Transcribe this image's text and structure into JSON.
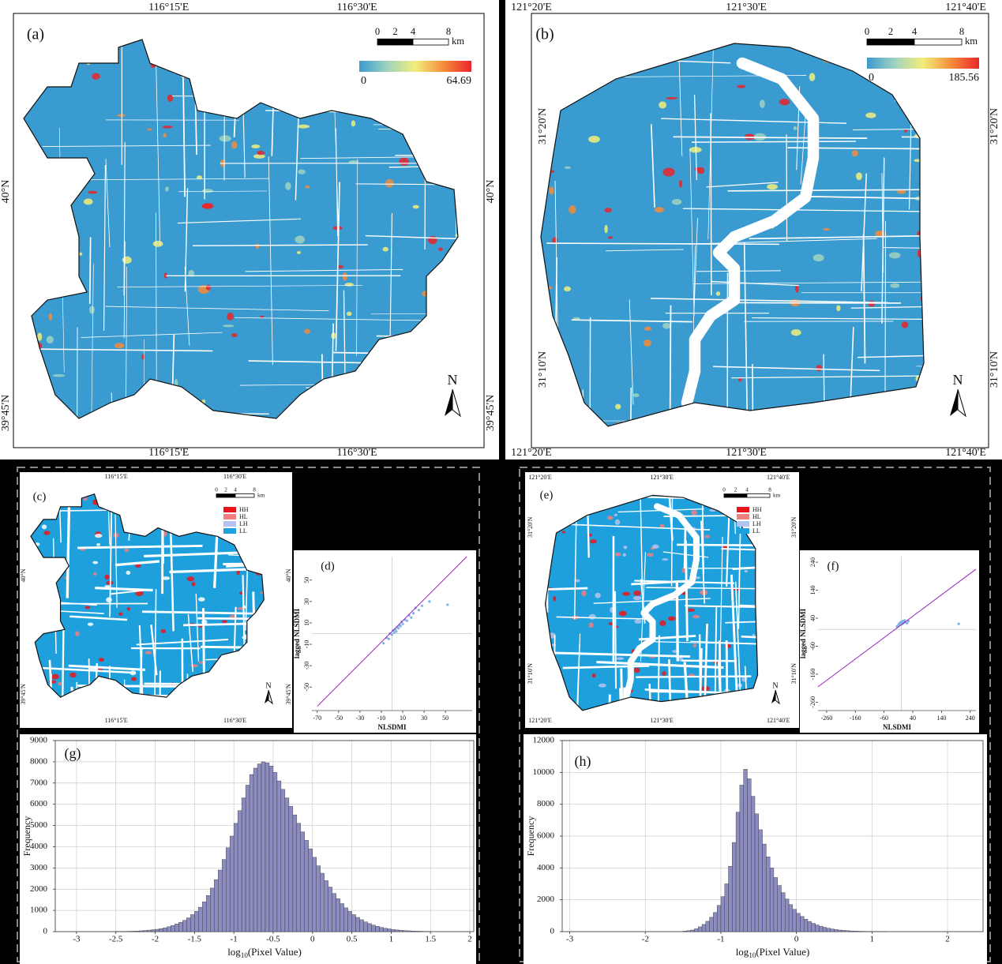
{
  "maps": [
    {
      "label": "(a)",
      "x_ticks": [
        "116°15'E",
        "116°30'E"
      ],
      "y_ticks": [
        "40°N",
        "39°45'N"
      ],
      "north": "N",
      "scale_bar": {
        "ticks": [
          0,
          2,
          4,
          8
        ],
        "unit": "km"
      },
      "colorbar": {
        "min": 0,
        "max": 64.69,
        "colormap": [
          "#3a9bd0",
          "#9fd3c0",
          "#f2ee7a",
          "#f58c3a",
          "#e8262a"
        ]
      }
    },
    {
      "label": "(b)",
      "x_ticks": [
        "121°20'E",
        "121°30'E",
        "121°40'E"
      ],
      "y_ticks": [
        "31°20'N",
        "31°10'N"
      ],
      "north": "N",
      "scale_bar": {
        "ticks": [
          0,
          2,
          4,
          8
        ],
        "unit": "km"
      },
      "colorbar": {
        "min": 0,
        "max": 185.56,
        "colormap": [
          "#3a9bd0",
          "#9fd3c0",
          "#f2ee7a",
          "#f58c3a",
          "#e8262a"
        ]
      }
    },
    {
      "label": "(c)",
      "x_ticks": [
        "116°15'E",
        "116°30'E"
      ],
      "y_ticks": [
        "40°N",
        "39°45'N"
      ],
      "north": "N",
      "scale_bar": {
        "ticks": [
          0,
          2,
          4,
          8
        ],
        "unit": "km"
      },
      "legend": {
        "names": [
          "HH",
          "HL",
          "LH",
          "LL"
        ],
        "colors": [
          "#e8161b",
          "#f08080",
          "#b4c4f0",
          "#1ea0dc"
        ]
      }
    },
    {
      "label": "(e)",
      "x_ticks": [
        "121°20'E",
        "121°30'E",
        "121°40'E"
      ],
      "y_ticks": [
        "31°20'N",
        "31°10'N"
      ],
      "north": "N",
      "scale_bar": {
        "ticks": [
          0,
          2,
          4,
          8
        ],
        "unit": "km"
      },
      "legend": {
        "names": [
          "HH",
          "HL",
          "LH",
          "LL"
        ],
        "colors": [
          "#e8161b",
          "#f08080",
          "#b4c4f0",
          "#1ea0dc"
        ]
      }
    }
  ],
  "chart_data": [
    {
      "type": "scatter",
      "label": "(d)",
      "x_label": "NLSDMI",
      "y_label": "lagged NLSDMI",
      "xlim": [
        -75,
        75
      ],
      "ylim": [
        -72,
        72
      ],
      "xticks": [
        -70,
        -50,
        -30,
        -10,
        10,
        30,
        50
      ],
      "yticks": [
        -50,
        -30,
        -10,
        10,
        30,
        50
      ],
      "color": "#7fb2e5",
      "x": [
        -8,
        -5,
        -3,
        -2,
        0,
        1,
        2,
        3,
        4,
        5,
        6,
        7,
        8,
        9,
        10,
        12,
        14,
        16,
        18,
        20,
        22,
        25,
        28,
        35,
        52
      ],
      "y": [
        -9,
        -4,
        -5,
        0,
        -1,
        3,
        1,
        4,
        2,
        6,
        5,
        8,
        7,
        11,
        9,
        13,
        12,
        17,
        15,
        19,
        24,
        22,
        26,
        30,
        27
      ],
      "fit": {
        "x": [
          -70,
          70
        ],
        "y": [
          -68,
          72
        ],
        "color": "#a020c0"
      }
    },
    {
      "type": "scatter",
      "label": "(f)",
      "x_label": "NLSDMI",
      "y_label": "lagged NLSDMI",
      "xlim": [
        -290,
        260
      ],
      "ylim": [
        -290,
        260
      ],
      "xticks": [
        -260,
        -160,
        -60,
        40,
        140,
        240
      ],
      "yticks": [
        -260,
        -160,
        -60,
        40,
        140,
        240
      ],
      "color": "#7fb2e5",
      "x": [
        -15,
        -10,
        -8,
        -5,
        -3,
        0,
        2,
        4,
        6,
        8,
        10,
        12,
        15,
        20,
        25,
        200
      ],
      "y": [
        10,
        15,
        20,
        18,
        25,
        22,
        28,
        20,
        30,
        26,
        24,
        32,
        27,
        22,
        30,
        20
      ],
      "fit": {
        "x": [
          -290,
          260
        ],
        "y": [
          -205,
          215
        ],
        "color": "#a020c0"
      }
    },
    {
      "type": "histogram",
      "label": "(g)",
      "x_label": [
        "log",
        "10",
        "(Pixel Value)"
      ],
      "y_label": "Frequency",
      "xlim": [
        -3.27,
        2.05
      ],
      "ylim": [
        0,
        9000
      ],
      "grid": true,
      "color": "#8c8cc0",
      "xticks": [
        -3,
        -2.5,
        -2,
        -1.5,
        -1,
        -0.5,
        0,
        0.5,
        1,
        1.5,
        2
      ],
      "yticks": [
        0,
        1000,
        2000,
        3000,
        4000,
        5000,
        6000,
        7000,
        8000,
        9000
      ],
      "bins": [
        -2.5,
        -2.45,
        -2.4,
        -2.35,
        -2.3,
        -2.25,
        -2.2,
        -2.15,
        -2.1,
        -2.05,
        -2.0,
        -1.95,
        -1.9,
        -1.85,
        -1.8,
        -1.75,
        -1.7,
        -1.65,
        -1.6,
        -1.55,
        -1.5,
        -1.45,
        -1.4,
        -1.35,
        -1.3,
        -1.25,
        -1.2,
        -1.15,
        -1.1,
        -1.05,
        -1.0,
        -0.95,
        -0.9,
        -0.85,
        -0.8,
        -0.75,
        -0.7,
        -0.65,
        -0.6,
        -0.55,
        -0.5,
        -0.45,
        -0.4,
        -0.35,
        -0.3,
        -0.25,
        -0.2,
        -0.15,
        -0.1,
        -0.05,
        0,
        0.05,
        0.1,
        0.15,
        0.2,
        0.25,
        0.3,
        0.35,
        0.4,
        0.45,
        0.5,
        0.55,
        0.6,
        0.65,
        0.7,
        0.75,
        0.8,
        0.85,
        0.9,
        0.95,
        1.0,
        1.05,
        1.1,
        1.15,
        1.2,
        1.25,
        1.3,
        1.35,
        1.4,
        1.45,
        1.5
      ],
      "values": [
        5,
        8,
        10,
        15,
        20,
        30,
        40,
        55,
        70,
        90,
        110,
        140,
        180,
        230,
        290,
        360,
        440,
        530,
        650,
        800,
        950,
        1150,
        1400,
        1700,
        2050,
        2450,
        2900,
        3400,
        3950,
        4500,
        5100,
        5700,
        6300,
        6900,
        7400,
        7700,
        7900,
        8000,
        7950,
        7800,
        7500,
        7100,
        6700,
        6300,
        5900,
        5500,
        5100,
        4700,
        4300,
        3900,
        3500,
        3100,
        2750,
        2400,
        2100,
        1800,
        1550,
        1320,
        1120,
        950,
        800,
        670,
        560,
        460,
        380,
        310,
        250,
        200,
        160,
        130,
        100,
        80,
        65,
        50,
        40,
        30,
        22,
        16,
        12,
        8
      ]
    },
    {
      "type": "histogram",
      "label": "(h)",
      "x_label": [
        "log",
        "10",
        "(Pixel Value)"
      ],
      "y_label": "Frequency",
      "xlim": [
        -3.1,
        2.47
      ],
      "ylim": [
        0,
        12000
      ],
      "grid": true,
      "color": "#8c8cc0",
      "xticks": [
        -3,
        -2,
        -1,
        0,
        1,
        2
      ],
      "yticks": [
        0,
        2000,
        4000,
        6000,
        8000,
        10000,
        12000
      ],
      "bins": [
        -1.5,
        -1.45,
        -1.4,
        -1.35,
        -1.3,
        -1.25,
        -1.2,
        -1.15,
        -1.1,
        -1.05,
        -1.0,
        -0.95,
        -0.9,
        -0.85,
        -0.8,
        -0.75,
        -0.7,
        -0.65,
        -0.6,
        -0.55,
        -0.5,
        -0.45,
        -0.4,
        -0.35,
        -0.3,
        -0.25,
        -0.2,
        -0.15,
        -0.1,
        -0.05,
        0,
        0.05,
        0.1,
        0.15,
        0.2,
        0.25,
        0.3,
        0.35,
        0.4,
        0.45,
        0.5,
        0.55,
        0.6,
        0.65,
        0.7,
        0.75,
        0.8,
        0.85,
        0.9,
        0.95,
        1.0,
        1.05,
        1.1,
        1.15,
        1.2
      ],
      "values": [
        30,
        60,
        100,
        180,
        300,
        450,
        650,
        900,
        1200,
        1650,
        2200,
        3000,
        4100,
        5600,
        7500,
        9200,
        10200,
        9600,
        8500,
        7400,
        6400,
        5500,
        4700,
        4000,
        3400,
        2900,
        2450,
        2050,
        1700,
        1400,
        1150,
        950,
        780,
        640,
        520,
        420,
        340,
        270,
        210,
        170,
        130,
        100,
        80,
        60,
        45,
        35,
        25,
        18,
        12,
        8,
        5,
        3,
        2,
        1
      ]
    }
  ]
}
